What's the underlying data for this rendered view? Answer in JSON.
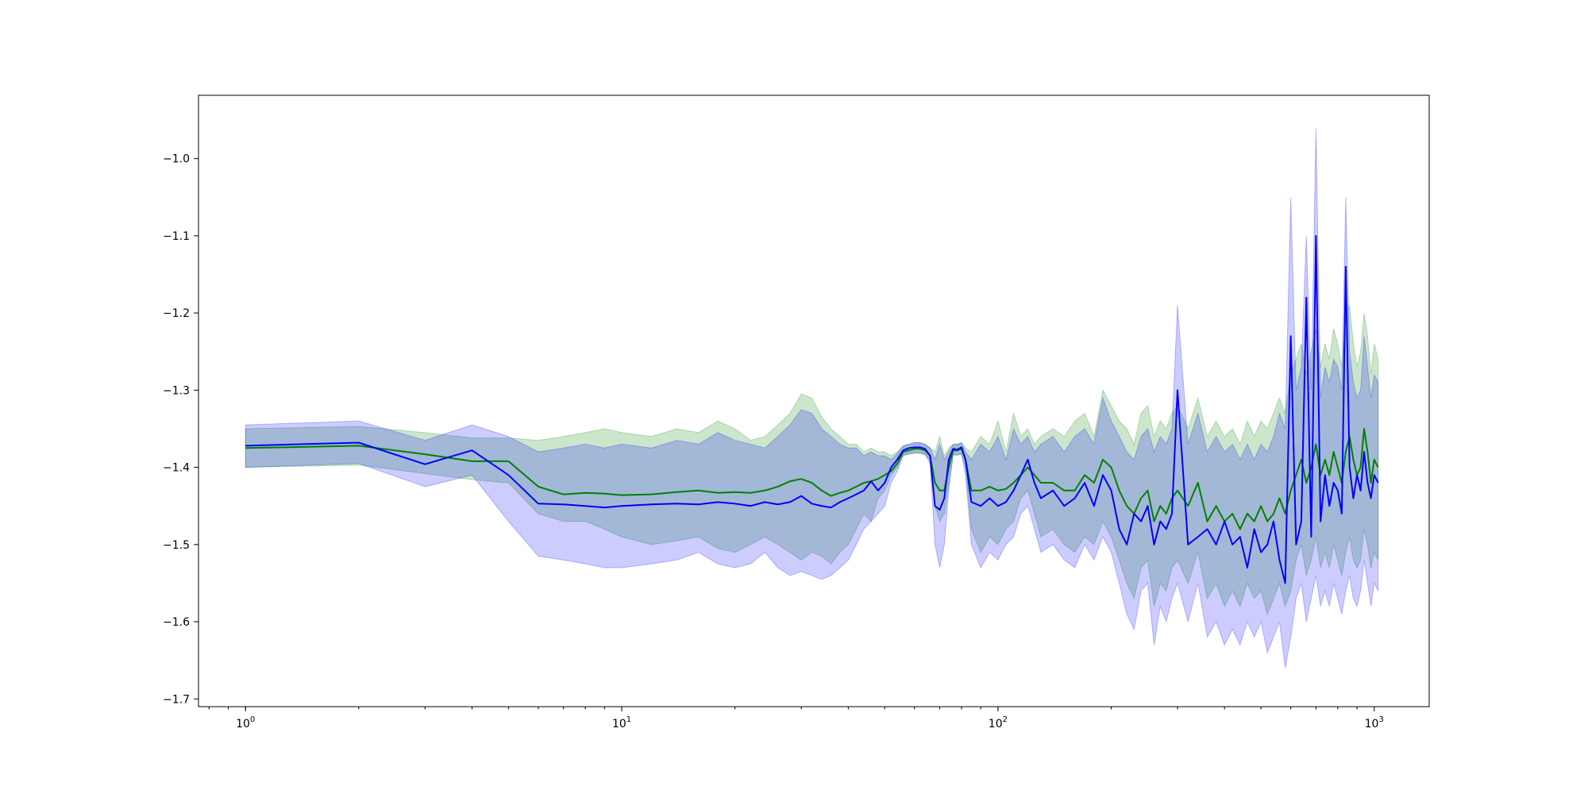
{
  "chart_data": {
    "type": "line",
    "title": "",
    "xlabel": "",
    "ylabel": "",
    "xscale": "log",
    "xlim": [
      0.75,
      1400
    ],
    "ylim": [
      -1.71,
      -0.918
    ],
    "grid": false,
    "legend": "none",
    "x_ticks": [
      {
        "base": "10",
        "exp": "0",
        "value": 1
      },
      {
        "base": "10",
        "exp": "1",
        "value": 10
      },
      {
        "base": "10",
        "exp": "2",
        "value": 100
      },
      {
        "base": "10",
        "exp": "3",
        "value": 1000
      }
    ],
    "y_ticks": [
      {
        "label": "−1.0",
        "value": -1.0
      },
      {
        "label": "−1.1",
        "value": -1.1
      },
      {
        "label": "−1.2",
        "value": -1.2
      },
      {
        "label": "−1.3",
        "value": -1.3
      },
      {
        "label": "−1.4",
        "value": -1.4
      },
      {
        "label": "−1.5",
        "value": -1.5
      },
      {
        "label": "−1.6",
        "value": -1.6
      },
      {
        "label": "−1.7",
        "value": -1.7
      }
    ],
    "series": [
      {
        "color": "#008000",
        "band_color": "#008000",
        "band_opacity": 0.2,
        "x": [
          1,
          2,
          3,
          4,
          5,
          6,
          7,
          8,
          9,
          10,
          12,
          14,
          16,
          18,
          20,
          22,
          24,
          26,
          28,
          30,
          32,
          34,
          36,
          38,
          40,
          42,
          44,
          46,
          48,
          50,
          52,
          54,
          56,
          58,
          60,
          62,
          64,
          66,
          68,
          70,
          72,
          74,
          76,
          78,
          80,
          82,
          85,
          90,
          95,
          100,
          105,
          110,
          115,
          120,
          125,
          130,
          140,
          150,
          160,
          170,
          180,
          190,
          200,
          210,
          220,
          230,
          240,
          250,
          260,
          270,
          280,
          290,
          300,
          320,
          340,
          360,
          380,
          400,
          420,
          440,
          460,
          480,
          500,
          520,
          540,
          560,
          580,
          600,
          620,
          640,
          660,
          680,
          700,
          720,
          740,
          760,
          780,
          800,
          820,
          840,
          860,
          880,
          900,
          920,
          940,
          960,
          980,
          1000,
          1024
        ],
        "y": [
          -1.375,
          -1.372,
          -1.383,
          -1.392,
          -1.392,
          -1.425,
          -1.435,
          -1.433,
          -1.434,
          -1.436,
          -1.435,
          -1.432,
          -1.43,
          -1.433,
          -1.432,
          -1.433,
          -1.43,
          -1.425,
          -1.418,
          -1.415,
          -1.42,
          -1.43,
          -1.437,
          -1.433,
          -1.43,
          -1.425,
          -1.42,
          -1.418,
          -1.415,
          -1.41,
          -1.405,
          -1.395,
          -1.38,
          -1.378,
          -1.376,
          -1.376,
          -1.378,
          -1.385,
          -1.42,
          -1.43,
          -1.43,
          -1.4,
          -1.378,
          -1.378,
          -1.376,
          -1.39,
          -1.43,
          -1.43,
          -1.425,
          -1.43,
          -1.428,
          -1.42,
          -1.41,
          -1.4,
          -1.41,
          -1.42,
          -1.42,
          -1.43,
          -1.43,
          -1.41,
          -1.42,
          -1.39,
          -1.4,
          -1.43,
          -1.45,
          -1.46,
          -1.44,
          -1.43,
          -1.47,
          -1.45,
          -1.46,
          -1.44,
          -1.43,
          -1.45,
          -1.42,
          -1.47,
          -1.45,
          -1.47,
          -1.46,
          -1.48,
          -1.46,
          -1.47,
          -1.45,
          -1.47,
          -1.46,
          -1.44,
          -1.46,
          -1.43,
          -1.41,
          -1.39,
          -1.42,
          -1.4,
          -1.37,
          -1.41,
          -1.39,
          -1.41,
          -1.38,
          -1.4,
          -1.42,
          -1.38,
          -1.36,
          -1.39,
          -1.41,
          -1.4,
          -1.35,
          -1.38,
          -1.42,
          -1.39,
          -1.4
        ],
        "lower": [
          -1.4,
          -1.397,
          -1.408,
          -1.416,
          -1.42,
          -1.46,
          -1.47,
          -1.47,
          -1.48,
          -1.49,
          -1.5,
          -1.495,
          -1.49,
          -1.505,
          -1.51,
          -1.5,
          -1.49,
          -1.5,
          -1.51,
          -1.52,
          -1.51,
          -1.515,
          -1.525,
          -1.51,
          -1.5,
          -1.48,
          -1.46,
          -1.47,
          -1.44,
          -1.43,
          -1.41,
          -1.4,
          -1.385,
          -1.383,
          -1.382,
          -1.382,
          -1.384,
          -1.39,
          -1.45,
          -1.47,
          -1.46,
          -1.42,
          -1.385,
          -1.384,
          -1.383,
          -1.4,
          -1.48,
          -1.51,
          -1.49,
          -1.5,
          -1.48,
          -1.47,
          -1.44,
          -1.43,
          -1.46,
          -1.49,
          -1.48,
          -1.5,
          -1.51,
          -1.49,
          -1.5,
          -1.47,
          -1.49,
          -1.52,
          -1.55,
          -1.57,
          -1.53,
          -1.52,
          -1.58,
          -1.55,
          -1.56,
          -1.53,
          -1.52,
          -1.55,
          -1.51,
          -1.57,
          -1.55,
          -1.58,
          -1.56,
          -1.58,
          -1.55,
          -1.57,
          -1.56,
          -1.59,
          -1.57,
          -1.55,
          -1.58,
          -1.56,
          -1.52,
          -1.5,
          -1.54,
          -1.52,
          -1.49,
          -1.53,
          -1.51,
          -1.53,
          -1.5,
          -1.52,
          -1.54,
          -1.51,
          -1.49,
          -1.52,
          -1.53,
          -1.52,
          -1.48,
          -1.5,
          -1.53,
          -1.51,
          -1.52
        ],
        "upper": [
          -1.35,
          -1.347,
          -1.355,
          -1.362,
          -1.362,
          -1.365,
          -1.36,
          -1.355,
          -1.35,
          -1.355,
          -1.36,
          -1.35,
          -1.355,
          -1.34,
          -1.35,
          -1.365,
          -1.36,
          -1.345,
          -1.33,
          -1.305,
          -1.31,
          -1.335,
          -1.35,
          -1.36,
          -1.37,
          -1.37,
          -1.38,
          -1.375,
          -1.38,
          -1.38,
          -1.385,
          -1.38,
          -1.372,
          -1.37,
          -1.368,
          -1.368,
          -1.37,
          -1.375,
          -1.38,
          -1.36,
          -1.385,
          -1.375,
          -1.37,
          -1.37,
          -1.368,
          -1.375,
          -1.38,
          -1.36,
          -1.37,
          -1.34,
          -1.38,
          -1.33,
          -1.36,
          -1.35,
          -1.37,
          -1.36,
          -1.35,
          -1.36,
          -1.34,
          -1.33,
          -1.36,
          -1.3,
          -1.32,
          -1.34,
          -1.35,
          -1.37,
          -1.33,
          -1.32,
          -1.36,
          -1.34,
          -1.35,
          -1.33,
          -1.32,
          -1.35,
          -1.31,
          -1.36,
          -1.34,
          -1.36,
          -1.35,
          -1.37,
          -1.34,
          -1.36,
          -1.34,
          -1.35,
          -1.33,
          -1.31,
          -1.33,
          -1.28,
          -1.26,
          -1.24,
          -1.28,
          -1.25,
          -1.22,
          -1.27,
          -1.24,
          -1.26,
          -1.22,
          -1.24,
          -1.27,
          -1.2,
          -1.19,
          -1.24,
          -1.27,
          -1.25,
          -1.2,
          -1.23,
          -1.28,
          -1.24,
          -1.26
        ]
      },
      {
        "color": "#0000ff",
        "band_color": "#0000ff",
        "band_opacity": 0.2,
        "x": [
          1,
          2,
          3,
          4,
          5,
          6,
          7,
          8,
          9,
          10,
          12,
          14,
          16,
          18,
          20,
          22,
          24,
          26,
          28,
          30,
          32,
          34,
          36,
          38,
          40,
          42,
          44,
          46,
          48,
          50,
          52,
          54,
          56,
          58,
          60,
          62,
          64,
          66,
          68,
          70,
          72,
          74,
          76,
          78,
          80,
          82,
          85,
          90,
          95,
          100,
          105,
          110,
          115,
          120,
          125,
          130,
          140,
          150,
          160,
          170,
          180,
          190,
          200,
          210,
          220,
          230,
          240,
          250,
          260,
          270,
          280,
          290,
          300,
          320,
          340,
          360,
          380,
          400,
          420,
          440,
          460,
          480,
          500,
          520,
          540,
          560,
          580,
          600,
          620,
          640,
          660,
          680,
          700,
          720,
          740,
          760,
          780,
          800,
          820,
          840,
          860,
          880,
          900,
          920,
          940,
          960,
          980,
          1000,
          1024
        ],
        "y": [
          -1.372,
          -1.368,
          -1.396,
          -1.378,
          -1.41,
          -1.447,
          -1.448,
          -1.45,
          -1.452,
          -1.45,
          -1.448,
          -1.447,
          -1.448,
          -1.445,
          -1.447,
          -1.45,
          -1.445,
          -1.448,
          -1.445,
          -1.437,
          -1.447,
          -1.45,
          -1.452,
          -1.445,
          -1.44,
          -1.435,
          -1.43,
          -1.418,
          -1.43,
          -1.42,
          -1.4,
          -1.39,
          -1.378,
          -1.375,
          -1.374,
          -1.374,
          -1.376,
          -1.385,
          -1.45,
          -1.455,
          -1.44,
          -1.39,
          -1.376,
          -1.377,
          -1.374,
          -1.39,
          -1.445,
          -1.45,
          -1.44,
          -1.45,
          -1.445,
          -1.43,
          -1.41,
          -1.39,
          -1.42,
          -1.44,
          -1.43,
          -1.45,
          -1.44,
          -1.42,
          -1.45,
          -1.41,
          -1.43,
          -1.48,
          -1.5,
          -1.46,
          -1.47,
          -1.45,
          -1.5,
          -1.47,
          -1.48,
          -1.46,
          -1.3,
          -1.5,
          -1.49,
          -1.48,
          -1.5,
          -1.47,
          -1.5,
          -1.49,
          -1.53,
          -1.48,
          -1.51,
          -1.5,
          -1.47,
          -1.52,
          -1.55,
          -1.23,
          -1.5,
          -1.47,
          -1.18,
          -1.49,
          -1.1,
          -1.47,
          -1.41,
          -1.45,
          -1.42,
          -1.43,
          -1.46,
          -1.14,
          -1.4,
          -1.44,
          -1.41,
          -1.43,
          -1.38,
          -1.42,
          -1.44,
          -1.41,
          -1.42
        ],
        "lower": [
          -1.4,
          -1.395,
          -1.425,
          -1.41,
          -1.47,
          -1.515,
          -1.52,
          -1.525,
          -1.53,
          -1.53,
          -1.525,
          -1.52,
          -1.51,
          -1.525,
          -1.53,
          -1.525,
          -1.51,
          -1.53,
          -1.54,
          -1.535,
          -1.54,
          -1.545,
          -1.54,
          -1.53,
          -1.52,
          -1.5,
          -1.48,
          -1.47,
          -1.46,
          -1.45,
          -1.42,
          -1.405,
          -1.384,
          -1.382,
          -1.381,
          -1.381,
          -1.383,
          -1.395,
          -1.5,
          -1.53,
          -1.5,
          -1.43,
          -1.383,
          -1.384,
          -1.382,
          -1.41,
          -1.5,
          -1.53,
          -1.51,
          -1.52,
          -1.5,
          -1.49,
          -1.46,
          -1.45,
          -1.48,
          -1.51,
          -1.5,
          -1.52,
          -1.53,
          -1.5,
          -1.52,
          -1.49,
          -1.51,
          -1.55,
          -1.59,
          -1.61,
          -1.56,
          -1.55,
          -1.63,
          -1.58,
          -1.6,
          -1.57,
          -1.55,
          -1.6,
          -1.55,
          -1.62,
          -1.6,
          -1.63,
          -1.61,
          -1.63,
          -1.6,
          -1.62,
          -1.6,
          -1.64,
          -1.62,
          -1.6,
          -1.66,
          -1.62,
          -1.57,
          -1.55,
          -1.6,
          -1.57,
          -1.54,
          -1.58,
          -1.56,
          -1.58,
          -1.55,
          -1.57,
          -1.59,
          -1.56,
          -1.54,
          -1.57,
          -1.58,
          -1.56,
          -1.52,
          -1.55,
          -1.58,
          -1.55,
          -1.56
        ],
        "upper": [
          -1.345,
          -1.34,
          -1.365,
          -1.345,
          -1.36,
          -1.38,
          -1.375,
          -1.37,
          -1.375,
          -1.37,
          -1.375,
          -1.365,
          -1.37,
          -1.355,
          -1.365,
          -1.37,
          -1.375,
          -1.36,
          -1.345,
          -1.325,
          -1.33,
          -1.35,
          -1.36,
          -1.37,
          -1.375,
          -1.375,
          -1.385,
          -1.38,
          -1.385,
          -1.385,
          -1.39,
          -1.382,
          -1.372,
          -1.37,
          -1.368,
          -1.368,
          -1.37,
          -1.375,
          -1.39,
          -1.37,
          -1.39,
          -1.38,
          -1.37,
          -1.37,
          -1.368,
          -1.38,
          -1.39,
          -1.37,
          -1.38,
          -1.36,
          -1.39,
          -1.35,
          -1.37,
          -1.36,
          -1.38,
          -1.37,
          -1.36,
          -1.38,
          -1.36,
          -1.35,
          -1.37,
          -1.31,
          -1.34,
          -1.36,
          -1.38,
          -1.39,
          -1.36,
          -1.35,
          -1.38,
          -1.36,
          -1.37,
          -1.35,
          -1.19,
          -1.37,
          -1.33,
          -1.38,
          -1.36,
          -1.38,
          -1.37,
          -1.39,
          -1.37,
          -1.39,
          -1.37,
          -1.38,
          -1.36,
          -1.33,
          -1.35,
          -1.05,
          -1.3,
          -1.27,
          -1.1,
          -1.3,
          -0.96,
          -1.31,
          -1.27,
          -1.29,
          -1.26,
          -1.27,
          -1.3,
          -1.05,
          -1.25,
          -1.29,
          -1.31,
          -1.3,
          -1.23,
          -1.27,
          -1.31,
          -1.28,
          -1.29
        ]
      }
    ]
  }
}
